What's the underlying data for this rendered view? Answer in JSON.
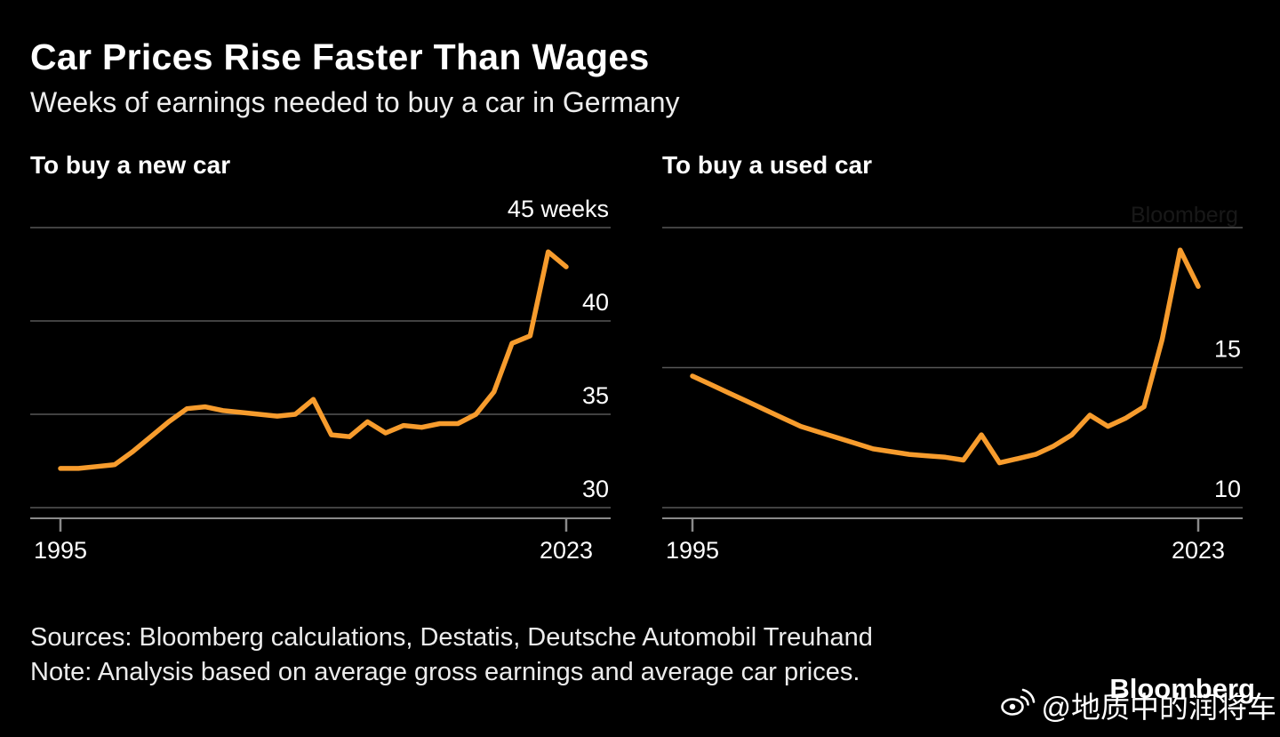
{
  "header": {
    "title": "Car Prices Rise Faster Than Wages",
    "subtitle": "Weeks of earnings needed to buy a car in Germany"
  },
  "colors": {
    "background": "#000000",
    "text": "#ffffff",
    "muted_text": "#ececec",
    "line": "#F79C2D",
    "grid": "#575757",
    "axis": "#8a8a8a"
  },
  "chart_data": [
    {
      "type": "line",
      "title": "To buy a new car",
      "ylabel": "weeks",
      "ylim": [
        29.5,
        45.8
      ],
      "grid": true,
      "legend_position": "none",
      "years": [
        1995,
        1996,
        1997,
        1998,
        1999,
        2000,
        2001,
        2002,
        2003,
        2004,
        2005,
        2006,
        2007,
        2008,
        2009,
        2010,
        2011,
        2012,
        2013,
        2014,
        2015,
        2016,
        2017,
        2018,
        2019,
        2020,
        2021,
        2022,
        2023
      ],
      "values": [
        32.1,
        32.1,
        32.2,
        32.3,
        33.0,
        33.8,
        34.6,
        35.3,
        35.4,
        35.2,
        35.1,
        35.0,
        34.9,
        35.0,
        35.8,
        33.9,
        33.8,
        34.6,
        34.0,
        34.4,
        34.3,
        34.5,
        34.5,
        35.0,
        36.2,
        38.8,
        39.2,
        43.7,
        42.9
      ],
      "gridlines": [
        {
          "value": 45,
          "label": "45 weeks"
        },
        {
          "value": 40,
          "label": "40"
        },
        {
          "value": 35,
          "label": "35"
        },
        {
          "value": 30,
          "label": "30"
        }
      ],
      "x_tick_labels": [
        "1995",
        "2023"
      ]
    },
    {
      "type": "line",
      "title": "To buy a used car",
      "ylabel": "weeks",
      "ylim": [
        9.5,
        20.3
      ],
      "grid": true,
      "legend_position": "none",
      "years": [
        1995,
        1996,
        1997,
        1998,
        1999,
        2000,
        2001,
        2002,
        2003,
        2004,
        2005,
        2006,
        2007,
        2008,
        2009,
        2010,
        2011,
        2012,
        2013,
        2014,
        2015,
        2016,
        2017,
        2018,
        2019,
        2020,
        2021,
        2022,
        2023
      ],
      "values": [
        14.7,
        14.4,
        14.1,
        13.8,
        13.5,
        13.2,
        12.9,
        12.7,
        12.5,
        12.3,
        12.1,
        12.0,
        11.9,
        11.85,
        11.8,
        11.7,
        12.6,
        11.6,
        11.75,
        11.9,
        12.2,
        12.6,
        13.3,
        12.9,
        13.2,
        13.6,
        16.0,
        19.2,
        17.9
      ],
      "gridlines": [
        {
          "value": 20,
          "label": ""
        },
        {
          "value": 15,
          "label": "15"
        },
        {
          "value": 10,
          "label": "10"
        }
      ],
      "x_tick_labels": [
        "1995",
        "2023"
      ]
    }
  ],
  "footer": {
    "sources": "Sources: Bloomberg calculations, Destatis, Deutsche Automobil Treuhand",
    "note": "Note: Analysis based on average gross earnings and average car prices.",
    "brand": "Bloomberg",
    "watermark_handle": "@地质中的润将车",
    "ghost_watermark": "Bloomberg"
  }
}
